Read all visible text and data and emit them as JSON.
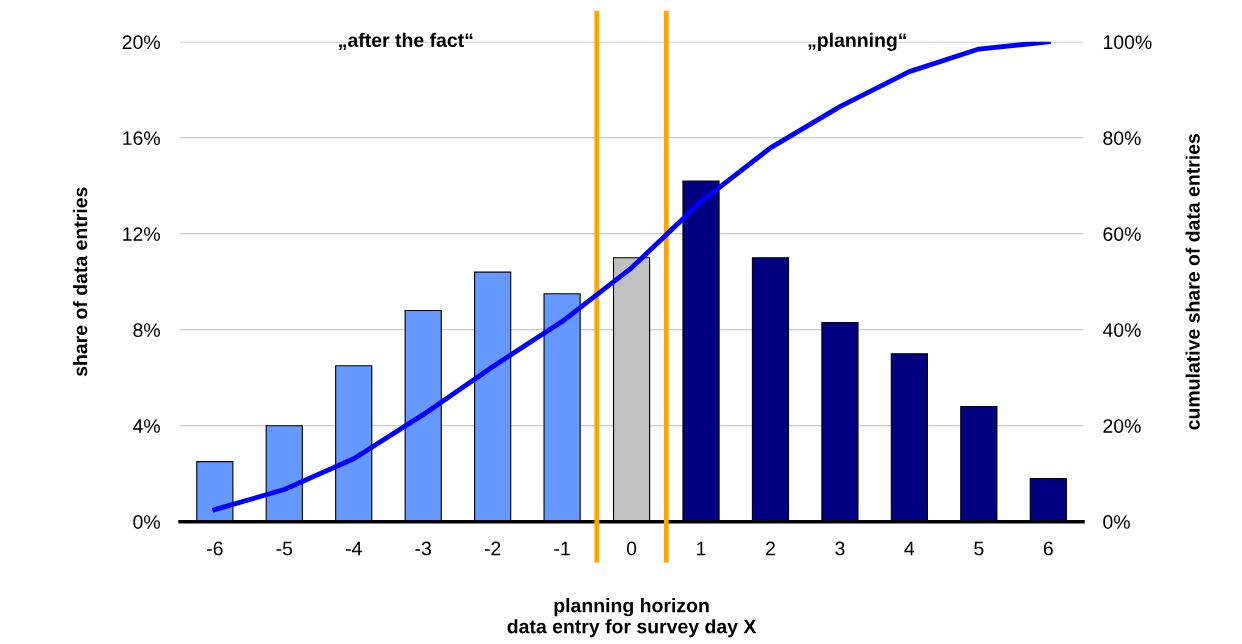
{
  "chart_data": {
    "type": "bar",
    "xlabel": "planning horizon\ndata entry for survey day X",
    "ylabel": "share of data entries",
    "y2label": "cumulative share of data entries",
    "x": [
      -6,
      -5,
      -4,
      -3,
      -2,
      -1,
      0,
      1,
      2,
      3,
      4,
      5,
      6
    ],
    "xlim": [
      -6.5,
      6.5
    ],
    "xticks": [
      -6,
      -5,
      -4,
      -3,
      -2,
      -1,
      0,
      1,
      2,
      3,
      4,
      5,
      6
    ],
    "series": [
      {
        "colors": [
          "#6699ff",
          "#6699ff",
          "#6699ff",
          "#6699ff",
          "#6699ff",
          "#6699ff",
          "#c0c0c0",
          "#000080",
          "#000080",
          "#000080",
          "#000080",
          "#000080",
          "#000080"
        ],
        "values": [
          2.5,
          4.0,
          6.5,
          8.8,
          10.4,
          9.5,
          11.0,
          14.2,
          11.0,
          8.3,
          7.0,
          4.8,
          1.8
        ]
      },
      {
        "type": "line",
        "axis": "y2",
        "color": "#0000ff",
        "values": [
          2.5,
          6.7,
          13.1,
          22.3,
          32.3,
          41.7,
          52.9,
          66.7,
          77.9,
          86.5,
          93.8,
          98.5,
          100
        ]
      }
    ],
    "ylim": [
      0,
      20
    ],
    "yticks": [
      {
        "value": 0,
        "label": "0%"
      },
      {
        "value": 4,
        "label": "4%"
      },
      {
        "value": 8,
        "label": "8%"
      },
      {
        "value": 12,
        "label": "12%"
      },
      {
        "value": 16,
        "label": "16%"
      },
      {
        "value": 20,
        "label": "20%"
      }
    ],
    "y2lim": [
      0,
      100
    ],
    "y2ticks": [
      {
        "value": 0,
        "label": "0%"
      },
      {
        "value": 20,
        "label": "20%"
      },
      {
        "value": 40,
        "label": "40%"
      },
      {
        "value": 60,
        "label": "60%"
      },
      {
        "value": 80,
        "label": "80%"
      },
      {
        "value": 100,
        "label": "100%"
      }
    ],
    "ref_lines": [
      {
        "axis": "x",
        "value": -0.5,
        "color": "#ffa500"
      },
      {
        "axis": "x",
        "value": 0.5,
        "color": "#ffa500"
      }
    ],
    "annotations": [
      "„after the fact“",
      "„planning“"
    ],
    "grid": "y",
    "legend": false
  }
}
